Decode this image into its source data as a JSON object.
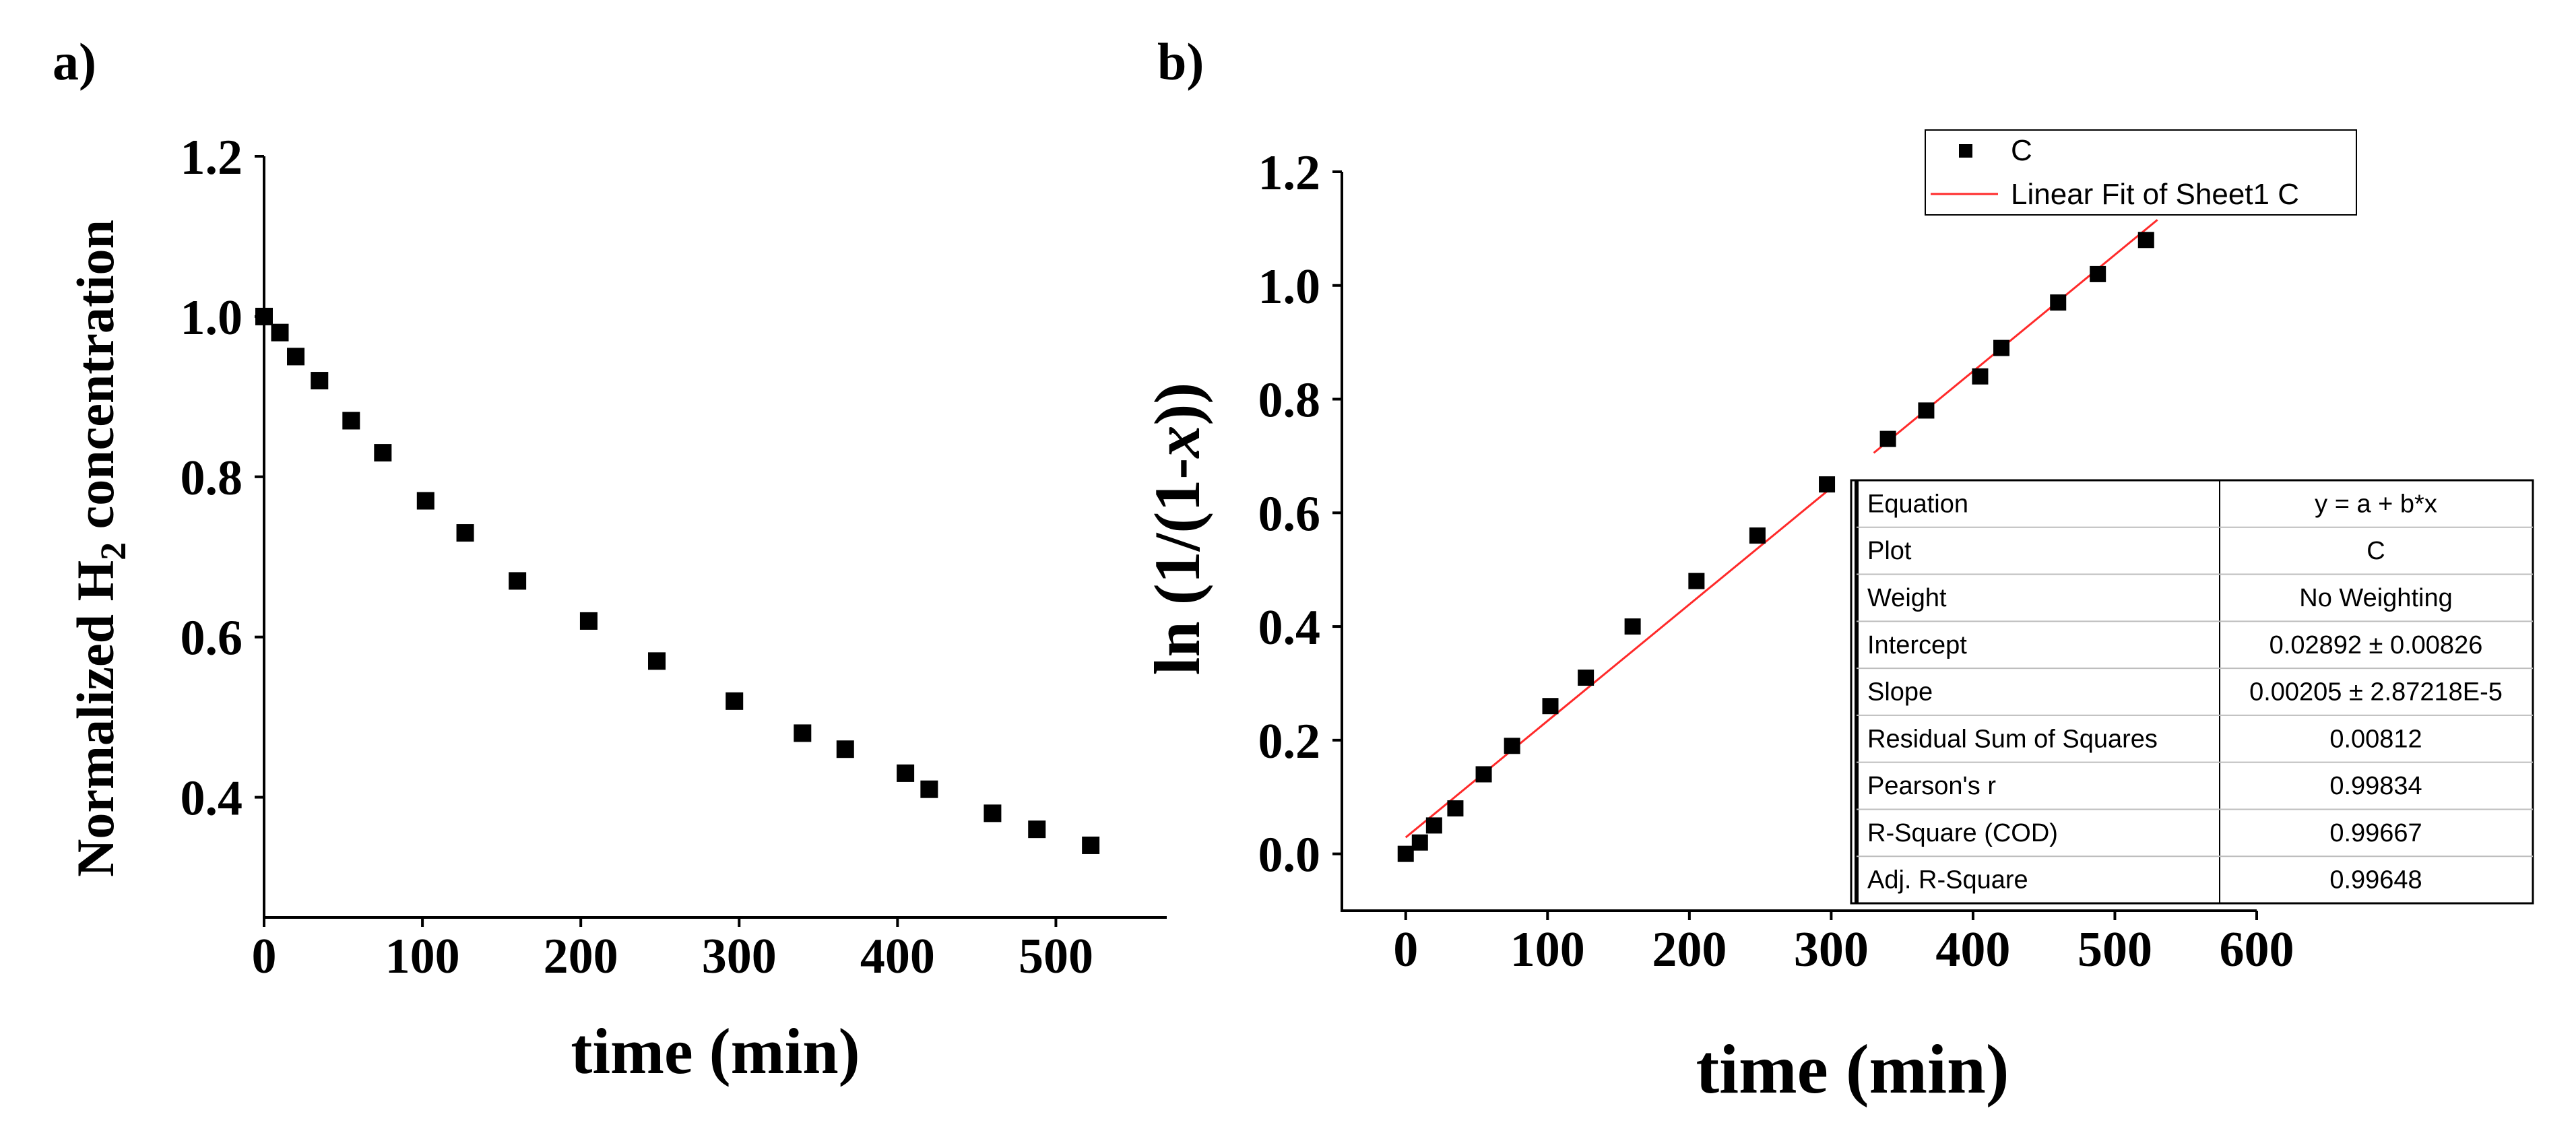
{
  "panels": {
    "a": {
      "label": "a)"
    },
    "b": {
      "label": "b)"
    }
  },
  "chart_data": [
    {
      "id": "a",
      "type": "scatter",
      "title": "",
      "xlabel": "time (min)",
      "ylabel_prefix": "Normalized H",
      "ylabel_subscript": "2",
      "ylabel_suffix": " concentration",
      "xlim": [
        0,
        570
      ],
      "ylim": [
        0.25,
        1.2
      ],
      "xticks": [
        0,
        100,
        200,
        300,
        400,
        500
      ],
      "xtick_labels": [
        "0",
        "100",
        "200",
        "300",
        "400",
        "500"
      ],
      "yticks": [
        0.4,
        0.6,
        0.8,
        1.0,
        1.2
      ],
      "ytick_labels": [
        "0.4",
        "0.6",
        "0.8",
        "1.0",
        "1.2"
      ],
      "series": [
        {
          "name": "Normalized H2 concentration",
          "color": "#000000",
          "x": [
            0,
            10,
            20,
            35,
            55,
            75,
            102,
            127,
            160,
            205,
            248,
            297,
            340,
            367,
            405,
            420,
            460,
            488,
            522
          ],
          "y": [
            1.0,
            0.98,
            0.95,
            0.92,
            0.87,
            0.83,
            0.77,
            0.73,
            0.67,
            0.62,
            0.57,
            0.52,
            0.48,
            0.46,
            0.43,
            0.41,
            0.38,
            0.36,
            0.34
          ]
        }
      ]
    },
    {
      "id": "b",
      "type": "scatter",
      "title": "",
      "xlabel": "time (min)",
      "ylabel_prefix": "ln (1/(1-",
      "ylabel_italic": "x",
      "ylabel_suffix": "))",
      "xlim": [
        -45,
        600
      ],
      "ylim": [
        -0.1,
        1.2
      ],
      "xticks": [
        0,
        100,
        200,
        300,
        400,
        500,
        600
      ],
      "xtick_labels": [
        "0",
        "100",
        "200",
        "300",
        "400",
        "500",
        "600"
      ],
      "yticks": [
        0.0,
        0.2,
        0.4,
        0.6,
        0.8,
        1.0,
        1.2
      ],
      "ytick_labels": [
        "0.0",
        "0.2",
        "0.4",
        "0.6",
        "0.8",
        "1.0",
        "1.2"
      ],
      "series": [
        {
          "name": "C",
          "color": "#000000",
          "x": [
            0,
            10,
            20,
            35,
            55,
            75,
            102,
            127,
            160,
            205,
            248,
            297,
            340,
            367,
            405,
            420,
            460,
            488,
            522
          ],
          "y": [
            0.0,
            0.02,
            0.05,
            0.08,
            0.14,
            0.19,
            0.26,
            0.31,
            0.4,
            0.48,
            0.56,
            0.65,
            0.73,
            0.78,
            0.84,
            0.89,
            0.97,
            1.02,
            1.08
          ]
        }
      ],
      "fit": {
        "name": "Linear Fit of Sheet1 C",
        "color": "#ff2a2a",
        "intercept": 0.02892,
        "slope": 0.00205,
        "x_range": [
          0,
          530
        ],
        "gap_x": [
          302,
          330
        ]
      },
      "legend": {
        "placement": "top-right",
        "entries": [
          "C",
          "Linear Fit of Sheet1 C"
        ]
      },
      "stats_table": [
        [
          "Equation",
          "y = a + b*x"
        ],
        [
          "Plot",
          "C"
        ],
        [
          "Weight",
          "No Weighting"
        ],
        [
          "Intercept",
          "0.02892 ± 0.00826"
        ],
        [
          "Slope",
          "0.00205 ± 2.87218E-5"
        ],
        [
          "Residual Sum of Squares",
          "0.00812"
        ],
        [
          "Pearson's r",
          "0.99834"
        ],
        [
          "R-Square (COD)",
          "0.99667"
        ],
        [
          "Adj. R-Square",
          "0.99648"
        ]
      ]
    }
  ]
}
